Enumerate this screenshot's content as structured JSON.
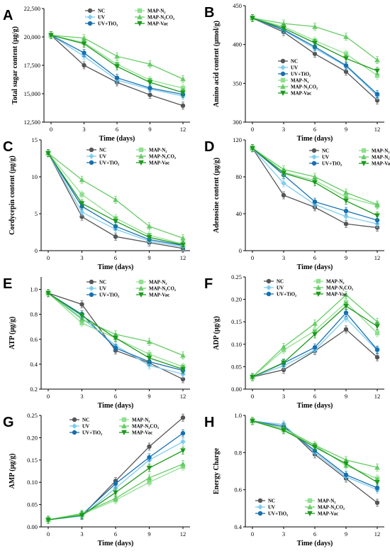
{
  "colors": {
    "NC": "#555555",
    "UV": "#7fcdef",
    "UV+TiO2": "#1670b0",
    "MAP-N2": "#8ee08e",
    "MAP-N2CO2": "#66cc66",
    "MAP-Vac": "#1a9a1a"
  },
  "legend_labels": [
    "NC",
    "UV",
    "UV+TiO₂",
    "MAP-N₂",
    "MAP-N₂CO₂",
    "MAP-Vac"
  ],
  "chart_data": [
    {
      "panel": "A",
      "type": "line",
      "xlabel": "Time (days)",
      "ylabel": "Total sugar content (μg/g)",
      "x": [
        0,
        3,
        6,
        9,
        12
      ],
      "xticks": [
        "0",
        "3",
        "6",
        "9",
        "12"
      ],
      "ylim": [
        12500,
        22500
      ],
      "yticks": [
        "12,500",
        "15,000",
        "17,500",
        "20,000",
        "22,500"
      ],
      "ytick_values": [
        12500,
        15000,
        17500,
        20000,
        22500
      ],
      "legend_position": "top",
      "series": [
        {
          "name": "NC",
          "values": [
            20150,
            17500,
            16000,
            14900,
            13950
          ]
        },
        {
          "name": "UV",
          "values": [
            20150,
            18300,
            16200,
            15400,
            14800
          ]
        },
        {
          "name": "UV+TiO2",
          "values": [
            20150,
            18600,
            16400,
            15500,
            14950
          ]
        },
        {
          "name": "MAP-N2",
          "values": [
            20150,
            19500,
            17600,
            16200,
            15500
          ]
        },
        {
          "name": "MAP-N2CO2",
          "values": [
            20150,
            19900,
            18300,
            17600,
            16300
          ]
        },
        {
          "name": "MAP-Vac",
          "values": [
            20150,
            19400,
            17400,
            16000,
            15100
          ]
        }
      ]
    },
    {
      "panel": "B",
      "type": "line",
      "xlabel": "Time (days)",
      "ylabel": "Amino acid content (μmol/g)",
      "x": [
        0,
        3,
        6,
        9,
        12
      ],
      "xticks": [
        "0",
        "3",
        "6",
        "9",
        "12"
      ],
      "ylim": [
        300,
        450
      ],
      "yticks": [
        "300",
        "350",
        "400",
        "450"
      ],
      "ytick_values": [
        300,
        350,
        400,
        450
      ],
      "legend_position": "left",
      "series": [
        {
          "name": "NC",
          "values": [
            434,
            416,
            388,
            365,
            328
          ]
        },
        {
          "name": "UV",
          "values": [
            434,
            418,
            395,
            372,
            334
          ]
        },
        {
          "name": "UV+TiO2",
          "values": [
            434,
            419,
            397,
            373,
            336
          ]
        },
        {
          "name": "MAP-N2",
          "values": [
            434,
            423,
            405,
            388,
            360
          ]
        },
        {
          "name": "MAP-N2CO2",
          "values": [
            434,
            427,
            423,
            410,
            380
          ]
        },
        {
          "name": "MAP-Vac",
          "values": [
            434,
            421,
            402,
            382,
            366
          ]
        }
      ]
    },
    {
      "panel": "C",
      "type": "line",
      "xlabel": "Time (days)",
      "ylabel": "Cordycepin content (μg/g)",
      "x": [
        0,
        3,
        6,
        9,
        12
      ],
      "xticks": [
        "0",
        "3",
        "6",
        "9",
        "12"
      ],
      "ylim": [
        0,
        15
      ],
      "yticks": [
        "0",
        "5",
        "10",
        "15"
      ],
      "ytick_values": [
        0,
        5,
        10,
        15
      ],
      "legend_position": "top",
      "series": [
        {
          "name": "NC",
          "values": [
            13.2,
            4.6,
            1.9,
            1.1,
            0.3
          ]
        },
        {
          "name": "UV",
          "values": [
            13.2,
            5.2,
            2.9,
            1.3,
            0.5
          ]
        },
        {
          "name": "UV+TiO2",
          "values": [
            13.2,
            6.0,
            3.3,
            1.5,
            0.7
          ]
        },
        {
          "name": "MAP-N2",
          "values": [
            13.2,
            7.6,
            4.4,
            2.1,
            0.9
          ]
        },
        {
          "name": "MAP-N2CO2",
          "values": [
            13.2,
            9.6,
            6.9,
            3.3,
            1.7
          ]
        },
        {
          "name": "MAP-Vac",
          "values": [
            13.2,
            6.4,
            4.0,
            1.8,
            0.8
          ]
        }
      ]
    },
    {
      "panel": "D",
      "type": "line",
      "xlabel": "Time (days)",
      "ylabel": "Adenosine content (μg/g)",
      "x": [
        0,
        3,
        6,
        9,
        12
      ],
      "xticks": [
        "0",
        "3",
        "6",
        "9",
        "12"
      ],
      "ylim": [
        0,
        120
      ],
      "yticks": [
        "0",
        "40",
        "80",
        "120"
      ],
      "ytick_values": [
        0,
        40,
        80,
        120
      ],
      "legend_position": "top",
      "series": [
        {
          "name": "NC",
          "values": [
            111,
            60,
            47,
            29,
            25
          ]
        },
        {
          "name": "UV",
          "values": [
            111,
            73,
            50,
            37,
            29
          ]
        },
        {
          "name": "UV+TiO2",
          "values": [
            111,
            82,
            53,
            43,
            33
          ]
        },
        {
          "name": "MAP-N2",
          "values": [
            111,
            85,
            76,
            58,
            49
          ]
        },
        {
          "name": "MAP-N2CO2",
          "values": [
            111,
            88,
            80,
            63,
            50
          ]
        },
        {
          "name": "MAP-Vac",
          "values": [
            111,
            84,
            74,
            54,
            38
          ]
        }
      ]
    },
    {
      "panel": "E",
      "type": "line",
      "xlabel": "Time (days)",
      "ylabel": "ATP (μg/g)",
      "x": [
        0,
        3,
        6,
        9,
        12
      ],
      "xticks": [
        "0",
        "3",
        "6",
        "9",
        "12"
      ],
      "ylim": [
        0.2,
        1.1
      ],
      "yticks": [
        "0.2",
        "0.4",
        "0.6",
        "0.8",
        "1.0"
      ],
      "ytick_values": [
        0.2,
        0.4,
        0.6,
        0.8,
        1.0
      ],
      "legend_position": "top",
      "series": [
        {
          "name": "NC",
          "values": [
            0.97,
            0.88,
            0.51,
            0.41,
            0.28
          ]
        },
        {
          "name": "UV",
          "values": [
            0.97,
            0.77,
            0.55,
            0.39,
            0.32
          ]
        },
        {
          "name": "UV+TiO2",
          "values": [
            0.97,
            0.8,
            0.53,
            0.42,
            0.35
          ]
        },
        {
          "name": "MAP-N2",
          "values": [
            0.97,
            0.73,
            0.61,
            0.48,
            0.38
          ]
        },
        {
          "name": "MAP-N2CO2",
          "values": [
            0.97,
            0.76,
            0.64,
            0.58,
            0.47
          ]
        },
        {
          "name": "MAP-Vac",
          "values": [
            0.97,
            0.79,
            0.61,
            0.45,
            0.36
          ]
        }
      ]
    },
    {
      "panel": "F",
      "type": "line",
      "xlabel": "Time (days)",
      "ylabel": "ADP (μg/g)",
      "x": [
        0,
        3,
        6,
        9,
        12
      ],
      "xticks": [
        "0",
        "3",
        "6",
        "9",
        "12"
      ],
      "ylim": [
        0,
        0.25
      ],
      "yticks": [
        "0.00",
        "0.05",
        "0.10",
        "0.15",
        "0.20",
        "0.25"
      ],
      "ytick_values": [
        0,
        0.05,
        0.1,
        0.15,
        0.2,
        0.25
      ],
      "legend_position": "top",
      "series": [
        {
          "name": "NC",
          "values": [
            0.027,
            0.043,
            0.085,
            0.133,
            0.071
          ]
        },
        {
          "name": "UV",
          "values": [
            0.027,
            0.052,
            0.087,
            0.158,
            0.086
          ]
        },
        {
          "name": "UV+TiO2",
          "values": [
            0.027,
            0.058,
            0.093,
            0.17,
            0.088
          ]
        },
        {
          "name": "MAP-N2",
          "values": [
            0.027,
            0.087,
            0.13,
            0.193,
            0.125
          ]
        },
        {
          "name": "MAP-N2CO2",
          "values": [
            0.027,
            0.094,
            0.146,
            0.21,
            0.15
          ]
        },
        {
          "name": "MAP-Vac",
          "values": [
            0.027,
            0.059,
            0.122,
            0.185,
            0.14
          ]
        }
      ]
    },
    {
      "panel": "G",
      "type": "line",
      "xlabel": "Time (days)",
      "ylabel": "AMP (μg/g)",
      "x": [
        0,
        3,
        6,
        9,
        12
      ],
      "xticks": [
        "0",
        "3",
        "6",
        "9",
        "12"
      ],
      "ylim": [
        0,
        0.25
      ],
      "yticks": [
        "0.00",
        "0.05",
        "0.10",
        "0.15",
        "0.20",
        "0.25"
      ],
      "ytick_values": [
        0,
        0.05,
        0.1,
        0.15,
        0.2,
        0.25
      ],
      "legend_position": "top-left",
      "series": [
        {
          "name": "NC",
          "values": [
            0.016,
            0.025,
            0.103,
            0.18,
            0.245
          ]
        },
        {
          "name": "UV",
          "values": [
            0.016,
            0.024,
            0.087,
            0.15,
            0.191
          ]
        },
        {
          "name": "UV+TiO2",
          "values": [
            0.016,
            0.027,
            0.097,
            0.156,
            0.21
          ]
        },
        {
          "name": "MAP-N2",
          "values": [
            0.016,
            0.028,
            0.06,
            0.1,
            0.135
          ]
        },
        {
          "name": "MAP-N2CO2",
          "values": [
            0.016,
            0.03,
            0.064,
            0.11,
            0.141
          ]
        },
        {
          "name": "MAP-Vac",
          "values": [
            0.016,
            0.026,
            0.077,
            0.132,
            0.171
          ]
        }
      ]
    },
    {
      "panel": "H",
      "type": "line",
      "xlabel": "Time (days)",
      "ylabel": "Energy Charge",
      "x": [
        0,
        3,
        6,
        9,
        12
      ],
      "xticks": [
        "0",
        "3",
        "6",
        "9",
        "12"
      ],
      "ylim": [
        0.4,
        1.0
      ],
      "yticks": [
        "0.4",
        "0.6",
        "0.8",
        "1.0"
      ],
      "ytick_values": [
        0.4,
        0.6,
        0.8,
        1.0
      ],
      "legend_position": "bottom-left",
      "series": [
        {
          "name": "NC",
          "values": [
            0.97,
            0.95,
            0.79,
            0.66,
            0.53
          ]
        },
        {
          "name": "UV",
          "values": [
            0.97,
            0.95,
            0.8,
            0.67,
            0.6
          ]
        },
        {
          "name": "UV+TiO2",
          "values": [
            0.97,
            0.94,
            0.81,
            0.68,
            0.61
          ]
        },
        {
          "name": "MAP-N2",
          "values": [
            0.97,
            0.92,
            0.84,
            0.73,
            0.66
          ]
        },
        {
          "name": "MAP-N2CO2",
          "values": [
            0.97,
            0.93,
            0.84,
            0.76,
            0.72
          ]
        },
        {
          "name": "MAP-Vac",
          "values": [
            0.97,
            0.92,
            0.83,
            0.74,
            0.64
          ]
        }
      ]
    }
  ]
}
